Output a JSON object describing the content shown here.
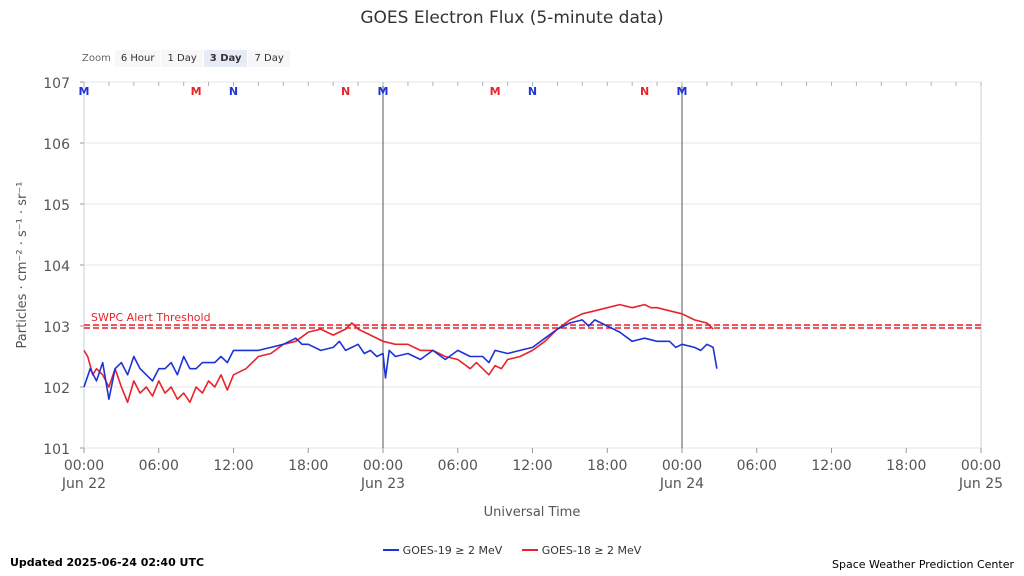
{
  "zoom": {
    "label": "Zoom",
    "buttons": [
      "6 Hour",
      "1 Day",
      "3 Day",
      "7 Day"
    ],
    "selected": "3 Day"
  },
  "footer": {
    "updated": "Updated 2025-06-24 02:40 UTC",
    "source": "Space Weather Prediction Center"
  },
  "chart_data": {
    "type": "line",
    "title": "GOES Electron Flux (5-minute data)",
    "xlabel": "Universal Time",
    "ylabel": "Particles · cm⁻² · s⁻¹ · sr⁻¹",
    "x_units": "hours since Jun 22 00:00 UTC",
    "xlim": [
      0,
      72
    ],
    "ylim_log10": [
      1,
      7
    ],
    "ytick_labels": [
      "101",
      "102",
      "103",
      "104",
      "105",
      "106",
      "107"
    ],
    "xtick_hours": [
      0,
      6,
      12,
      18,
      24,
      30,
      36,
      42,
      48,
      54,
      60,
      66,
      72
    ],
    "xtick_labels": [
      "00:00",
      "06:00",
      "12:00",
      "18:00",
      "00:00",
      "06:00",
      "12:00",
      "18:00",
      "00:00",
      "06:00",
      "12:00",
      "18:00",
      "00:00"
    ],
    "xtick_sublabels": {
      "0": "Jun 22",
      "24": "Jun 23",
      "48": "Jun 24",
      "72": "Jun 25"
    },
    "day_lines_hours": [
      24,
      48
    ],
    "threshold": {
      "label": "SWPC Alert Threshold",
      "value_log10": 3.0,
      "color": "#e8242b"
    },
    "markers": [
      {
        "label": "M",
        "hour": 0,
        "color": "#1e33d6"
      },
      {
        "label": "M",
        "hour": 9,
        "color": "#e8242b"
      },
      {
        "label": "N",
        "hour": 12,
        "color": "#1e33d6"
      },
      {
        "label": "N",
        "hour": 21,
        "color": "#e8242b"
      },
      {
        "label": "M",
        "hour": 24,
        "color": "#1e33d6"
      },
      {
        "label": "M",
        "hour": 33,
        "color": "#e8242b"
      },
      {
        "label": "N",
        "hour": 36,
        "color": "#1e33d6"
      },
      {
        "label": "N",
        "hour": 45,
        "color": "#e8242b"
      },
      {
        "label": "M",
        "hour": 48,
        "color": "#1e33d6"
      }
    ],
    "series": [
      {
        "name": "GOES-19 ≥ 2 MeV",
        "color": "#1e33d6",
        "x": [
          0,
          0.5,
          1,
          1.5,
          2,
          2.5,
          3,
          3.5,
          4,
          4.5,
          5,
          5.5,
          6,
          6.5,
          7,
          7.5,
          8,
          8.5,
          9,
          9.5,
          10,
          10.5,
          11,
          11.5,
          12,
          13,
          14,
          15,
          16,
          17,
          17.5,
          18,
          19,
          20,
          20.5,
          21,
          22,
          22.5,
          23,
          23.5,
          24,
          24.2,
          24.5,
          25,
          26,
          27,
          28,
          29,
          30,
          31,
          32,
          32.5,
          33,
          34,
          35,
          36,
          37,
          38,
          39,
          40,
          40.5,
          41,
          42,
          43,
          44,
          45,
          46,
          47,
          47.5,
          48,
          49,
          49.5,
          50,
          50.5,
          50.8
        ],
        "values": [
          2.0,
          2.3,
          2.1,
          2.4,
          1.8,
          2.3,
          2.4,
          2.2,
          2.5,
          2.3,
          2.2,
          2.1,
          2.3,
          2.3,
          2.4,
          2.2,
          2.5,
          2.3,
          2.3,
          2.4,
          2.4,
          2.4,
          2.5,
          2.4,
          2.6,
          2.6,
          2.6,
          2.65,
          2.7,
          2.8,
          2.7,
          2.7,
          2.6,
          2.65,
          2.75,
          2.6,
          2.7,
          2.55,
          2.6,
          2.5,
          2.55,
          2.15,
          2.6,
          2.5,
          2.55,
          2.45,
          2.6,
          2.45,
          2.6,
          2.5,
          2.5,
          2.4,
          2.6,
          2.55,
          2.6,
          2.65,
          2.8,
          2.95,
          3.05,
          3.1,
          3.0,
          3.1,
          3.0,
          2.9,
          2.75,
          2.8,
          2.75,
          2.75,
          2.65,
          2.7,
          2.65,
          2.6,
          2.7,
          2.65,
          2.3
        ]
      },
      {
        "name": "GOES-18 ≥ 2 MeV",
        "color": "#e8242b",
        "x": [
          0,
          0.3,
          0.7,
          1,
          1.5,
          2,
          2.5,
          3,
          3.5,
          4,
          4.5,
          5,
          5.5,
          6,
          6.5,
          7,
          7.5,
          8,
          8.5,
          9,
          9.5,
          10,
          10.5,
          11,
          11.5,
          12,
          13,
          14,
          15,
          16,
          17,
          18,
          19,
          20,
          21,
          21.5,
          22,
          23,
          24,
          25,
          26,
          27,
          28,
          29,
          30,
          31,
          31.5,
          32,
          32.5,
          33,
          33.5,
          34,
          35,
          36,
          37,
          38,
          39,
          40,
          41,
          42,
          43,
          44,
          45,
          45.5,
          46,
          47,
          48,
          49,
          50,
          50.5
        ],
        "values": [
          2.6,
          2.5,
          2.2,
          2.3,
          2.2,
          2.0,
          2.3,
          2.0,
          1.75,
          2.1,
          1.9,
          2.0,
          1.85,
          2.1,
          1.9,
          2.0,
          1.8,
          1.9,
          1.75,
          2.0,
          1.9,
          2.1,
          2.0,
          2.2,
          1.95,
          2.2,
          2.3,
          2.5,
          2.55,
          2.7,
          2.75,
          2.9,
          2.95,
          2.85,
          2.95,
          3.05,
          2.95,
          2.85,
          2.75,
          2.7,
          2.7,
          2.6,
          2.6,
          2.5,
          2.45,
          2.3,
          2.4,
          2.3,
          2.2,
          2.35,
          2.3,
          2.45,
          2.5,
          2.6,
          2.75,
          2.95,
          3.1,
          3.2,
          3.25,
          3.3,
          3.35,
          3.3,
          3.35,
          3.3,
          3.3,
          3.25,
          3.2,
          3.1,
          3.05,
          2.95
        ]
      }
    ]
  }
}
